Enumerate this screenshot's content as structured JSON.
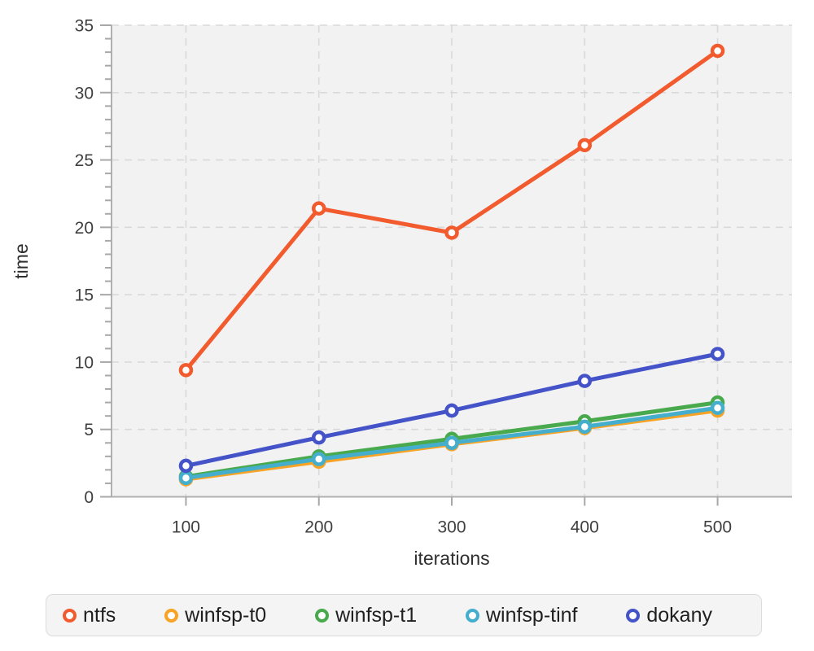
{
  "chart_data": {
    "type": "line",
    "title": "",
    "xlabel": "iterations",
    "ylabel": "time",
    "x": [
      100,
      200,
      300,
      400,
      500
    ],
    "x_ticks": [
      100,
      200,
      300,
      400,
      500
    ],
    "y_ticks": [
      0,
      5,
      10,
      15,
      20,
      25,
      30,
      35
    ],
    "ylim": [
      0,
      35
    ],
    "xlim": [
      44,
      556
    ],
    "y_minor_step": 1,
    "grid": "dashed",
    "legend_position": "bottom",
    "series": [
      {
        "name": "ntfs",
        "color": "#f15b2e",
        "values": [
          9.4,
          21.4,
          19.6,
          26.1,
          33.1
        ]
      },
      {
        "name": "winfsp-t0",
        "color": "#f7a325",
        "values": [
          1.3,
          2.6,
          3.9,
          5.1,
          6.4
        ]
      },
      {
        "name": "winfsp-t1",
        "color": "#49a94d",
        "values": [
          1.5,
          3.0,
          4.3,
          5.6,
          7.0
        ]
      },
      {
        "name": "winfsp-tinf",
        "color": "#45aecd",
        "values": [
          1.4,
          2.8,
          4.0,
          5.2,
          6.6
        ]
      },
      {
        "name": "dokany",
        "color": "#4453c8",
        "values": [
          2.3,
          4.4,
          6.4,
          8.6,
          10.6
        ]
      }
    ],
    "colors": {
      "plot_bg": "#f2f2f3",
      "grid": "#d9d9d9",
      "axis": "#b0b0b0",
      "tick": "#a8a8a8"
    }
  }
}
